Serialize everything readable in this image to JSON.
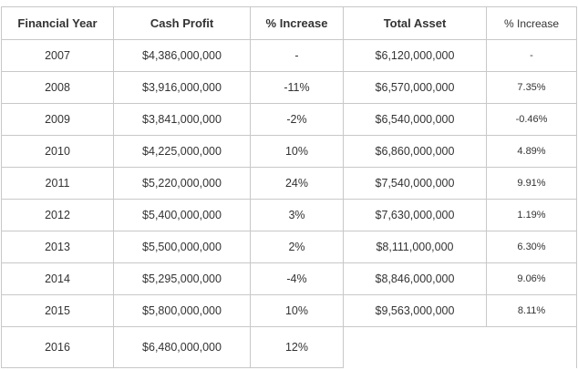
{
  "table": {
    "header": [
      "Financial Year",
      "Cash Profit",
      "% Increase",
      "Total Asset",
      "% Increase"
    ],
    "rows": [
      [
        "2007",
        "$4,386,000,000",
        "-",
        "$6,120,000,000",
        "-"
      ],
      [
        "2008",
        "$3,916,000,000",
        "-11%",
        "$6,570,000,000",
        "7.35%"
      ],
      [
        "2009",
        "$3,841,000,000",
        "-2%",
        "$6,540,000,000",
        "-0.46%"
      ],
      [
        "2010",
        "$4,225,000,000",
        "10%",
        "$6,860,000,000",
        "4.89%"
      ],
      [
        "2011",
        "$5,220,000,000",
        "24%",
        "$7,540,000,000",
        "9.91%"
      ],
      [
        "2012",
        "$5,400,000,000",
        "3%",
        "$7,630,000,000",
        "1.19%"
      ],
      [
        "2013",
        "$5,500,000,000",
        "2%",
        "$8,111,000,000",
        "6.30%"
      ],
      [
        "2014",
        "$5,295,000,000",
        "-4%",
        "$8,846,000,000",
        "9.06%"
      ],
      [
        "2015",
        "$5,800,000,000",
        "10%",
        "$9,563,000,000",
        "8.11%"
      ],
      [
        "2016",
        "$6,480,000,000",
        "12%"
      ]
    ]
  }
}
